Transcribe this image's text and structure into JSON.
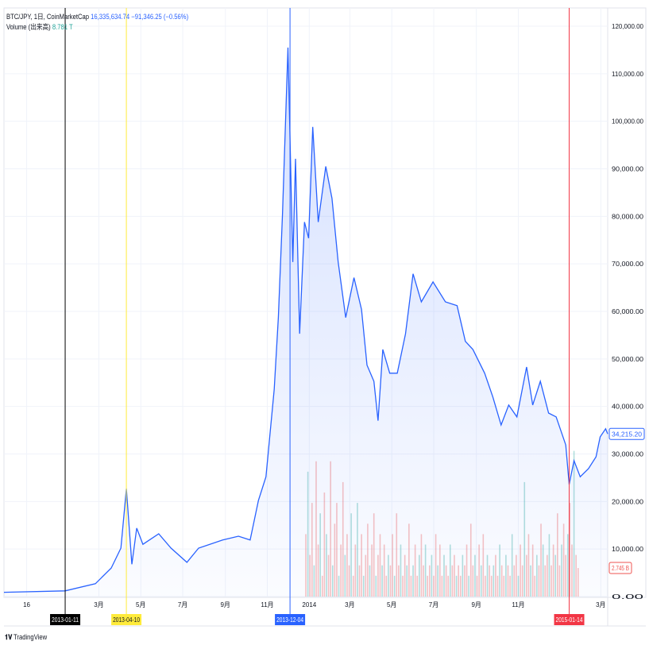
{
  "legend": {
    "symbol": "BTC/JPY, 1日, CoinMarketCap",
    "last": "16,335,634.74",
    "change": "−91,346.25 (−0.56%)",
    "volume_label": "Volume (出来高)",
    "volume_value": "8.781 T"
  },
  "branding": "TradingView",
  "colors": {
    "line": "#2962ff",
    "fill": "#2962ff",
    "vol_up": "#26a69a",
    "vol_down": "#ef5350",
    "grid": "#f0f3fa"
  },
  "chart_data": {
    "type": "area",
    "yticks": [
      "120,000.00",
      "110,000.00",
      "100,000.00",
      "90,000.00",
      "80,000.00",
      "70,000.00",
      "60,000.00",
      "50,000.00",
      "40,000.00",
      "30,000.00",
      "20,000.00",
      "10,000.00",
      "0.00"
    ],
    "ylim": [
      0,
      120000
    ],
    "xlim": [
      "2012-10-14",
      "2015-03-11"
    ],
    "xticks": [
      {
        "date": "2012-11-16",
        "label": "16"
      },
      {
        "date": "2013-03-01",
        "label": "3月"
      },
      {
        "date": "2013-05-01",
        "label": "5月"
      },
      {
        "date": "2013-07-01",
        "label": "7月"
      },
      {
        "date": "2013-09-01",
        "label": "9月"
      },
      {
        "date": "2013-11-01",
        "label": "11月"
      },
      {
        "date": "2014-01-01",
        "label": "2014"
      },
      {
        "date": "2014-03-01",
        "label": "3月"
      },
      {
        "date": "2014-05-01",
        "label": "5月"
      },
      {
        "date": "2014-07-01",
        "label": "7月"
      },
      {
        "date": "2014-09-01",
        "label": "9月"
      },
      {
        "date": "2014-11-01",
        "label": "11月"
      },
      {
        "date": "2015-03-01",
        "label": "3月"
      }
    ],
    "markers": [
      {
        "date": "2013-01-11",
        "label": "2013-01-11",
        "color": "#000000",
        "text": "#ffffff"
      },
      {
        "date": "2013-04-10",
        "label": "2013-04-10",
        "color": "#ffeb3b",
        "text": "#131722"
      },
      {
        "date": "2013-12-04",
        "label": "2013-12-04",
        "color": "#2962ff",
        "text": "#ffffff"
      },
      {
        "date": "2015-01-14",
        "label": "2015-01-14",
        "color": "#f23645",
        "text": "#ffffff"
      }
    ],
    "price_label": "34,215.20",
    "volume_label": "2.745 B",
    "series": [
      {
        "x": [
          "2012-10-14",
          "2013-01-11",
          "2013-02-24",
          "2013-03-19",
          "2013-04-02",
          "2013-04-10",
          "2013-04-18",
          "2013-04-25",
          "2013-05-04",
          "2013-05-27",
          "2013-06-14",
          "2013-07-07",
          "2013-07-24",
          "2013-08-28",
          "2013-09-20",
          "2013-10-07",
          "2013-10-19",
          "2013-10-30",
          "2013-11-11",
          "2013-11-17",
          "2013-11-23",
          "2013-12-01",
          "2013-12-08",
          "2013-12-12",
          "2013-12-18",
          "2013-12-25",
          "2013-12-31",
          "2014-01-06",
          "2014-01-14",
          "2014-01-25",
          "2014-02-03",
          "2014-02-12",
          "2014-02-23",
          "2014-03-07",
          "2014-03-18",
          "2014-03-26",
          "2014-04-05",
          "2014-04-11",
          "2014-04-18",
          "2014-04-28",
          "2014-05-09",
          "2014-05-21",
          "2014-06-01",
          "2014-06-13",
          "2014-06-30",
          "2014-07-18",
          "2014-08-04",
          "2014-08-16",
          "2014-08-27",
          "2014-09-13",
          "2014-09-25",
          "2014-10-07",
          "2014-10-18",
          "2014-10-30",
          "2014-11-13",
          "2014-11-22",
          "2014-12-03",
          "2014-12-15",
          "2014-12-26",
          "2015-01-09",
          "2015-01-14",
          "2015-01-21",
          "2015-01-30",
          "2015-02-11",
          "2015-02-22",
          "2015-02-28",
          "2015-03-08",
          "2015-03-11"
        ],
        "y": [
          900,
          1200,
          2700,
          6000,
          10200,
          22700,
          6800,
          14400,
          11000,
          13200,
          10200,
          7200,
          10200,
          11900,
          12700,
          11900,
          20200,
          25200,
          43600,
          58700,
          80400,
          115500,
          70400,
          92100,
          55300,
          78800,
          75400,
          98800,
          78800,
          90500,
          83800,
          70400,
          58700,
          67100,
          60400,
          48700,
          45300,
          37000,
          52000,
          47000,
          47000,
          55300,
          67900,
          62000,
          66200,
          62000,
          61200,
          53700,
          52000,
          47000,
          42000,
          36100,
          40300,
          37800,
          48300,
          40300,
          45300,
          38600,
          37800,
          31900,
          23600,
          28600,
          25200,
          26900,
          29400,
          33600,
          35300,
          34215.2
        ]
      }
    ],
    "volume": {
      "unit": "B",
      "start": "2013-12-27",
      "step_days": 3,
      "values": [
        6,
        12,
        4,
        9,
        3,
        13,
        5,
        8,
        2,
        10,
        6,
        4,
        13,
        3,
        7,
        9,
        2,
        5,
        11,
        4,
        6,
        3,
        8,
        2,
        5,
        9,
        3,
        6,
        2,
        4,
        7,
        3,
        5,
        8,
        2,
        4,
        6,
        3,
        5,
        2,
        4,
        3,
        6,
        2,
        8,
        3,
        5,
        2,
        4,
        3,
        7,
        2,
        3,
        5,
        2,
        4,
        6,
        3,
        5,
        2,
        3,
        4,
        2,
        6,
        3,
        5,
        2,
        4,
        3,
        2,
        5,
        3,
        4,
        2,
        3,
        2,
        4,
        3,
        5,
        2,
        7,
        3,
        4,
        2,
        5,
        3,
        6,
        2,
        4,
        3,
        2,
        3,
        4,
        2,
        5,
        3,
        2,
        4,
        3,
        2,
        6,
        3,
        4,
        2,
        5,
        3,
        11,
        4,
        6,
        3,
        5,
        2,
        4,
        3,
        7,
        5,
        3,
        4,
        6,
        3,
        5,
        4,
        8,
        3,
        5,
        7,
        4,
        6,
        9,
        5,
        14,
        4,
        2.745
      ]
    }
  }
}
